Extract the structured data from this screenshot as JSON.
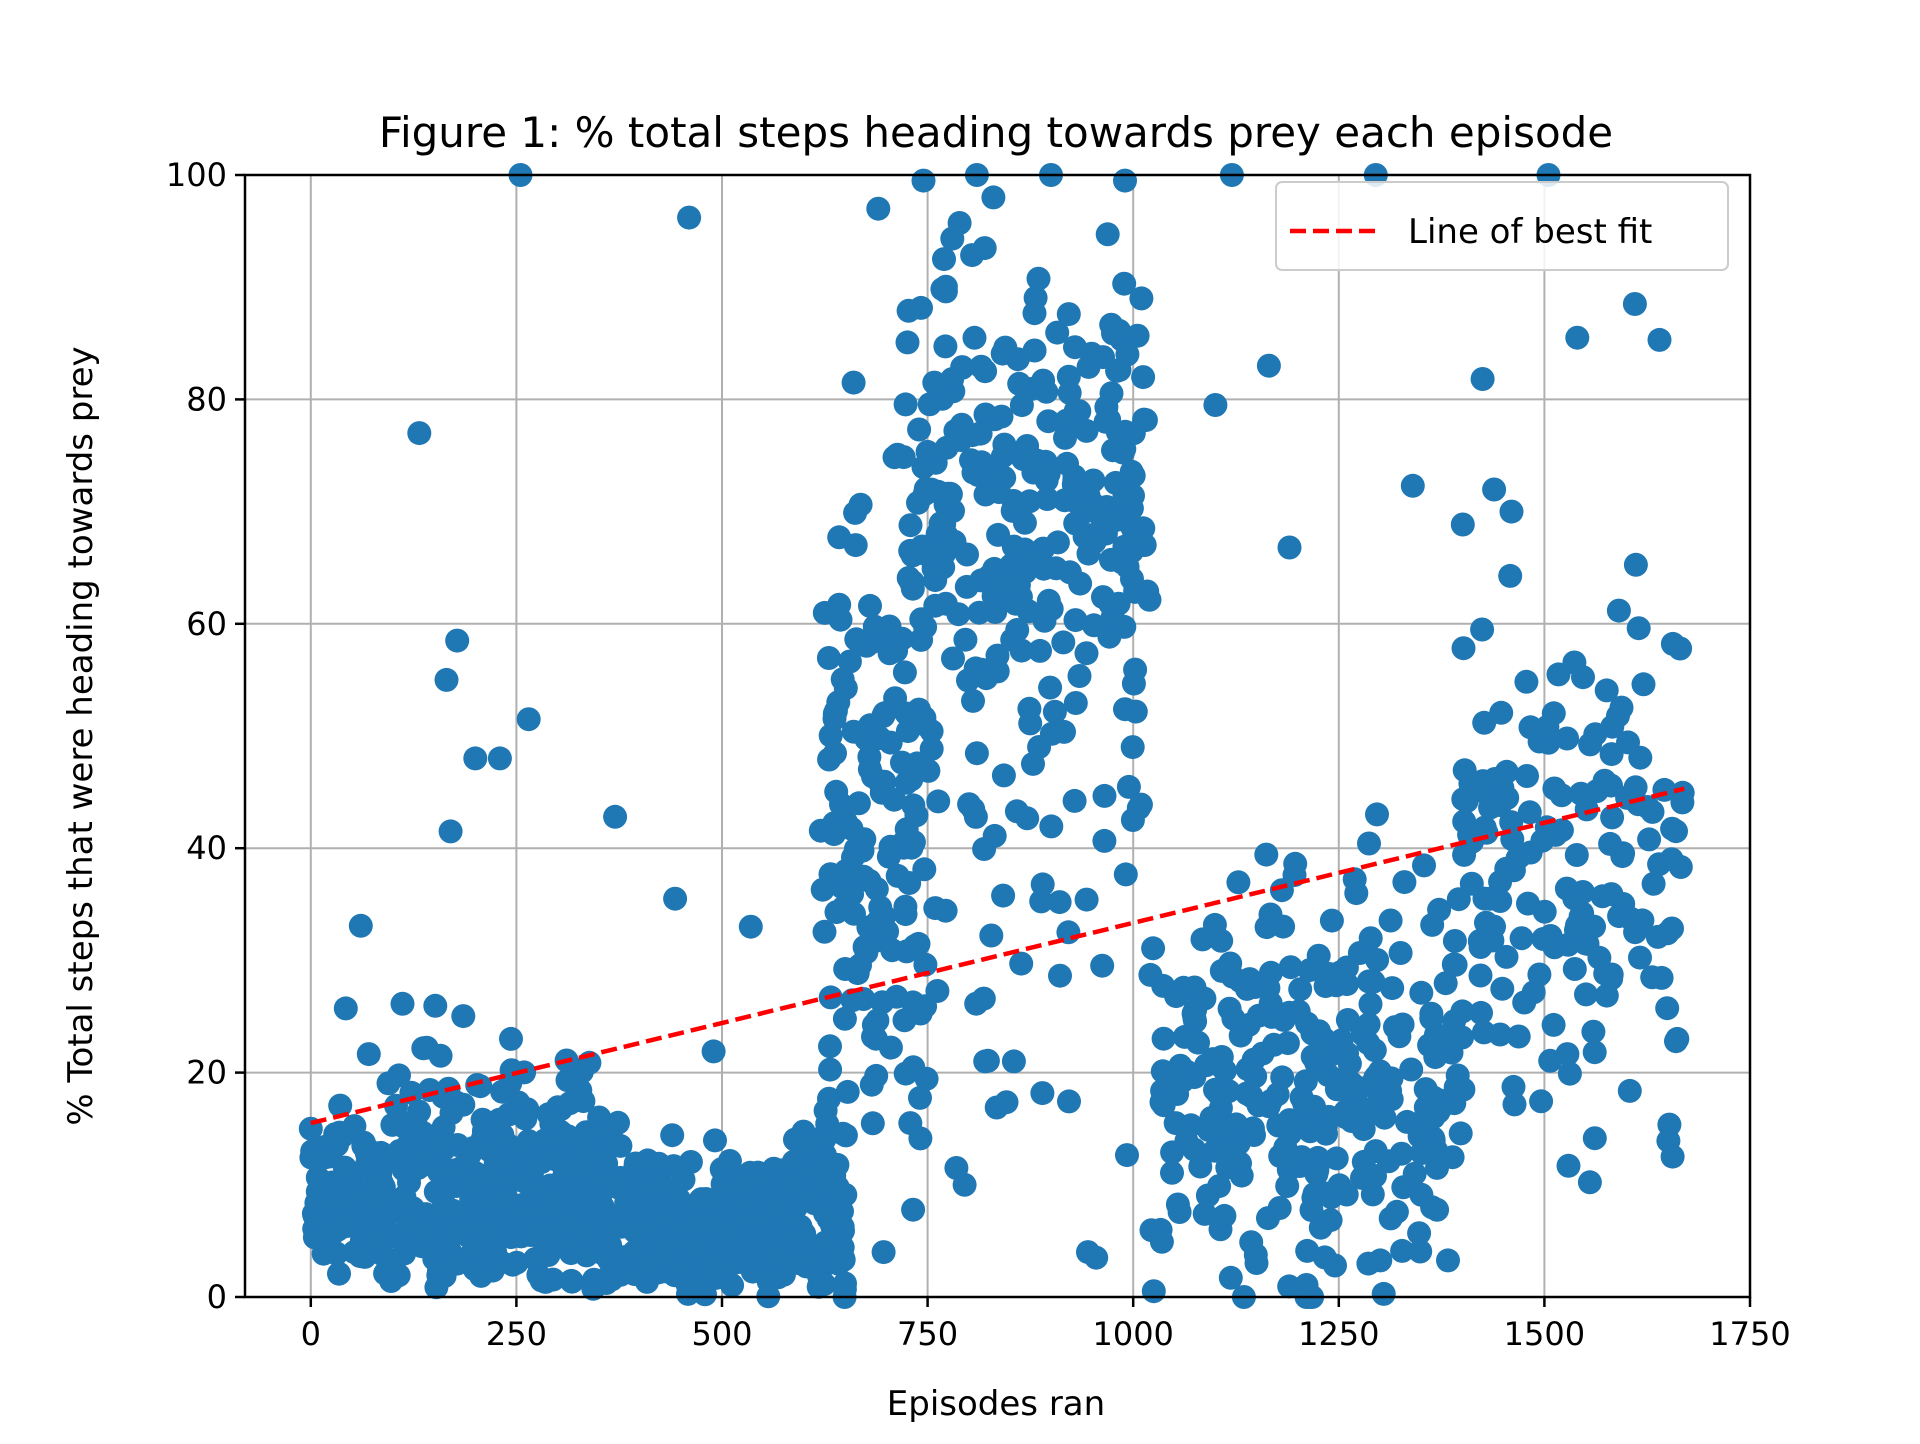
{
  "chart_data": {
    "type": "scatter",
    "title": "Figure 1: % total steps heading towards prey each episode",
    "xlabel": "Episodes ran",
    "ylabel": "% Total steps that were heading towards prey",
    "xlim": [
      -80,
      1750
    ],
    "ylim": [
      0,
      100
    ],
    "x_ticks": [
      0,
      250,
      500,
      750,
      1000,
      1250,
      1500,
      1750
    ],
    "y_ticks": [
      0,
      20,
      40,
      60,
      80,
      100
    ],
    "grid": true,
    "legend": {
      "position": "top-right",
      "entries": [
        "Line of best fit"
      ]
    },
    "colors": {
      "points": "#1f77b4",
      "fit_line": "#ff0000"
    },
    "series": [
      {
        "type": "line",
        "style": "dashed",
        "x": [
          0,
          1670
        ],
        "y": [
          15.5,
          45.3
        ]
      },
      {
        "type": "scatter",
        "point_count": 1670,
        "x_range": [
          0,
          1670
        ],
        "y_range": [
          0,
          100
        ],
        "highlighted_points": [
          [
            0,
            15
          ],
          [
            132,
            77
          ],
          [
            178,
            58.5
          ],
          [
            165,
            55
          ],
          [
            200,
            48
          ],
          [
            230,
            48
          ],
          [
            170,
            41.5
          ],
          [
            255,
            100
          ],
          [
            265,
            51.5
          ],
          [
            370,
            42.8
          ],
          [
            443,
            35.5
          ],
          [
            460,
            96.2
          ],
          [
            535,
            33
          ],
          [
            660,
            81.5
          ],
          [
            690,
            97
          ],
          [
            745,
            99.5
          ],
          [
            770,
            92.5
          ],
          [
            810,
            100
          ],
          [
            830,
            98
          ],
          [
            900,
            100
          ],
          [
            990,
            99.5
          ],
          [
            1010,
            89
          ],
          [
            1120,
            100
          ],
          [
            1295,
            100
          ],
          [
            1505,
            100
          ],
          [
            1100,
            79.5
          ],
          [
            1165,
            83
          ],
          [
            1190,
            66.8
          ],
          [
            1340,
            72.3
          ],
          [
            1460,
            70
          ],
          [
            1540,
            85.5
          ],
          [
            1610,
            88.5
          ],
          [
            1640,
            85.3
          ],
          [
            1665,
            57.8
          ],
          [
            1660,
            22.8
          ],
          [
            945,
            4
          ],
          [
            955,
            3.5
          ],
          [
            795,
            10
          ],
          [
            785,
            11.5
          ],
          [
            855,
            21
          ],
          [
            820,
            21
          ]
        ],
        "segments": [
          {
            "x": [
              0,
              355
            ],
            "y_center": 12,
            "y_spread": 14,
            "n": 400
          },
          {
            "x": [
              355,
              650
            ],
            "y_center": 7,
            "y_spread": 9,
            "n": 340
          },
          {
            "x": [
              620,
              760
            ],
            "y_center": 40,
            "y_spread": 26,
            "n": 150
          },
          {
            "x": [
              720,
              1020
            ],
            "y_center": 70,
            "y_spread": 16,
            "n": 250
          },
          {
            "x": [
              700,
              1020
            ],
            "y_center": 42,
            "y_spread": 18,
            "n": 60
          },
          {
            "x": [
              1020,
              1400
            ],
            "y_center": 18,
            "y_spread": 16,
            "n": 300
          },
          {
            "x": [
              1400,
              1670
            ],
            "y_center": 38,
            "y_spread": 22,
            "n": 170
          }
        ]
      }
    ]
  }
}
